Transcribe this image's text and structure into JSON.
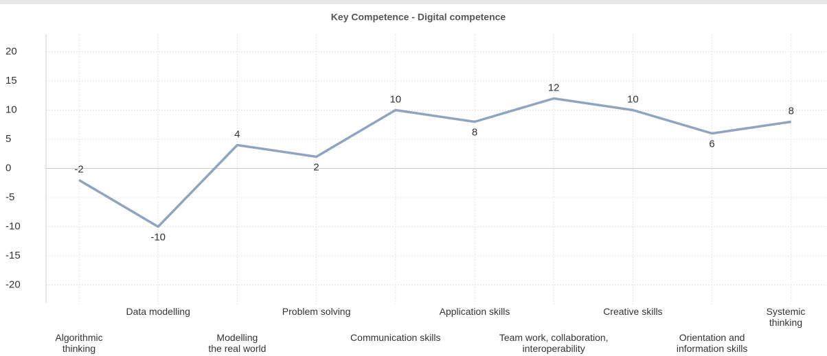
{
  "chart_data": {
    "type": "line",
    "title": "Key Competence - Digital competence",
    "categories": [
      "Algorithmic\nthinking",
      "Data modelling",
      "Modelling\nthe real world",
      "Problem solving",
      "Communication skills",
      "Application skills",
      "Team work, collaboration,\ninteroperability",
      "Creative skills",
      "Orientation and\ninformation skills",
      "Systemic\nthinking"
    ],
    "values": [
      -2,
      -10,
      4,
      2,
      10,
      8,
      12,
      10,
      6,
      8
    ],
    "color": "#8fa4bf",
    "ylim": [
      -23,
      23
    ],
    "yticks": [
      -20,
      -15,
      -10,
      -5,
      0,
      5,
      10,
      15,
      20
    ],
    "grid": true
  }
}
